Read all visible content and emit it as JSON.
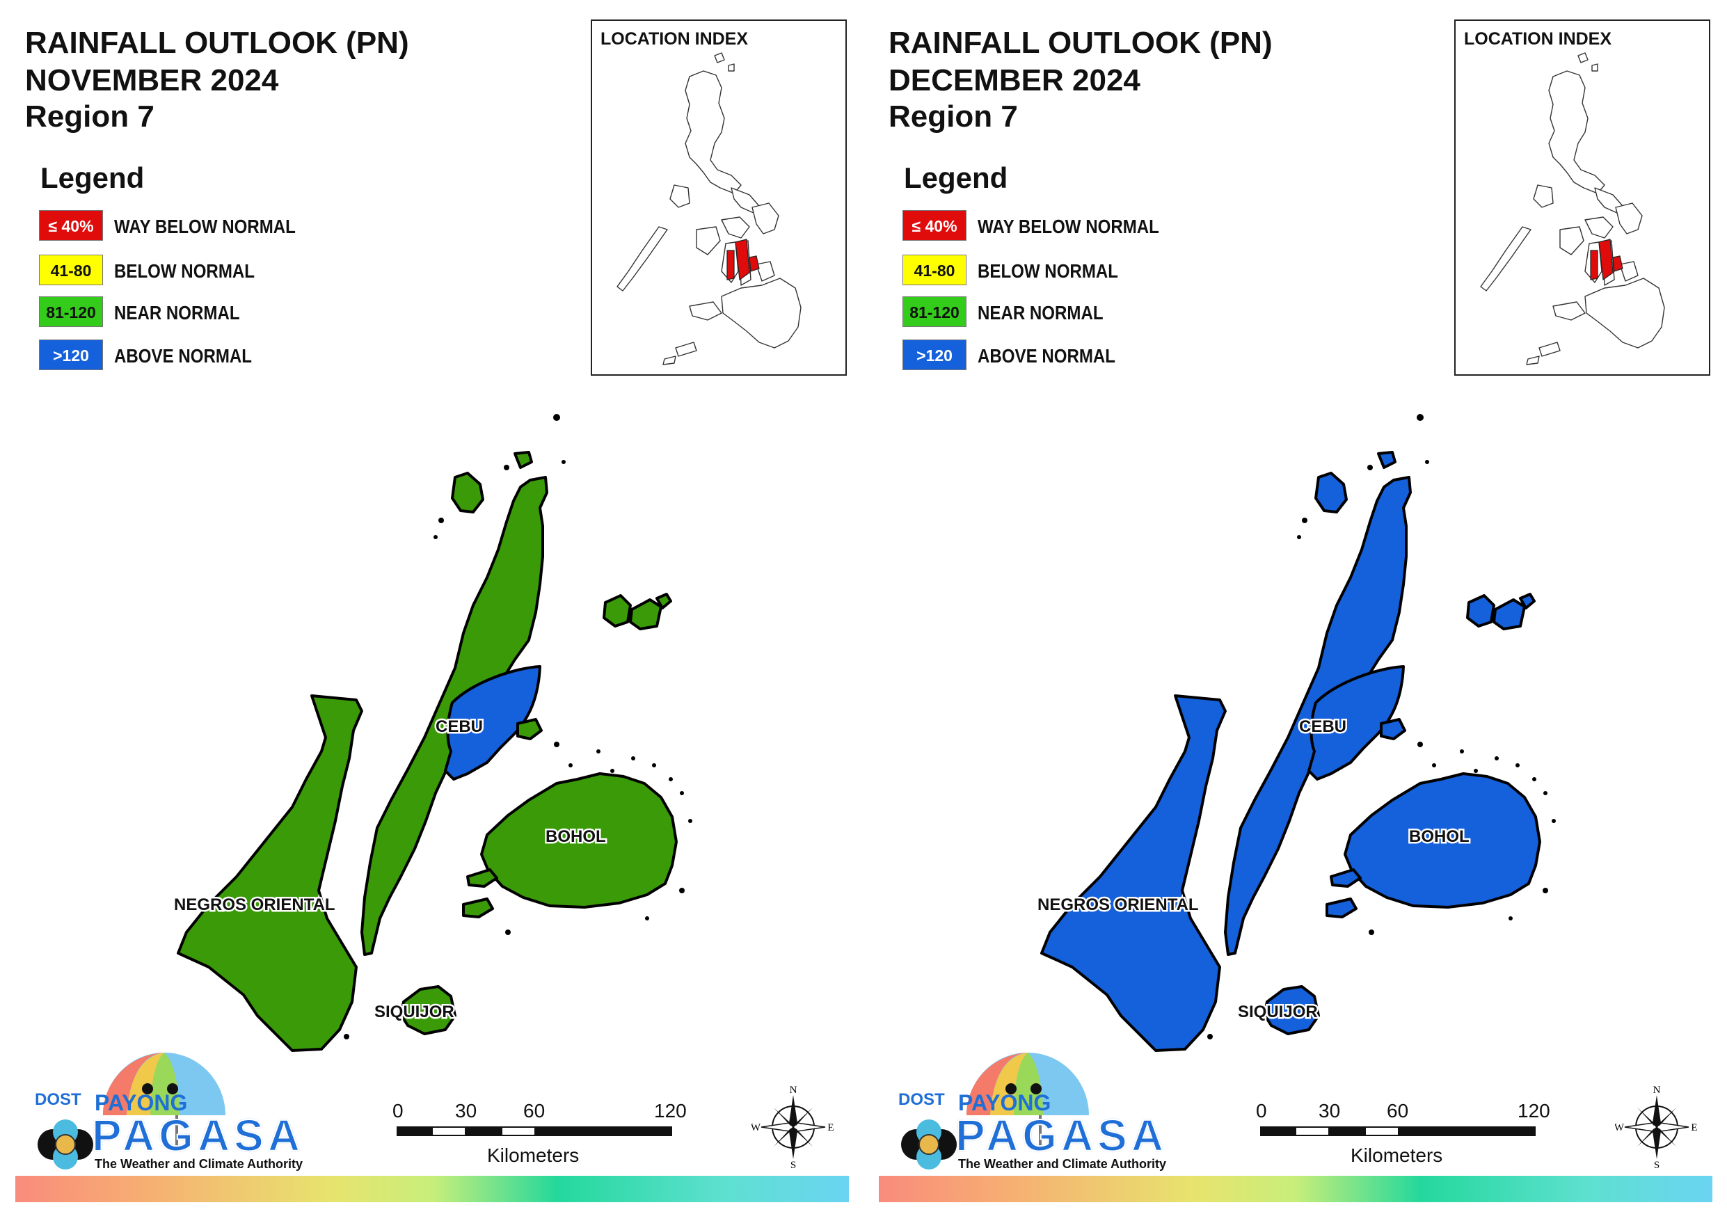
{
  "panels": [
    {
      "title_line1": "RAINFALL OUTLOOK (PN)",
      "title_line2": "NOVEMBER 2024",
      "title_line3": "Region 7",
      "province_fill": {
        "negros": "#3a9a08",
        "cebu": "#3a9a08",
        "bohol": "#3a9a08",
        "siquijor": "#3a9a08",
        "cebu_east_patch": "#1560db"
      }
    },
    {
      "title_line1": "RAINFALL OUTLOOK (PN)",
      "title_line2": "DECEMBER 2024",
      "title_line3": "Region 7",
      "province_fill": {
        "negros": "#1560db",
        "cebu": "#1560db",
        "bohol": "#1560db",
        "siquijor": "#1560db",
        "cebu_east_patch": "#1560db"
      }
    }
  ],
  "legend": {
    "title": "Legend",
    "items": [
      {
        "range": "≤ 40%",
        "label": "WAY BELOW NORMAL",
        "color": "#e00c0c",
        "text_color": "#ffffff"
      },
      {
        "range": "41-80",
        "label": "BELOW NORMAL",
        "color": "#ffff00",
        "text_color": "#111111"
      },
      {
        "range": "81-120",
        "label": "NEAR NORMAL",
        "color": "#33cc1a",
        "text_color": "#111111"
      },
      {
        "range": ">120",
        "label": "ABOVE NORMAL",
        "color": "#1560db",
        "text_color": "#ffffff"
      }
    ]
  },
  "location_index": {
    "title": "LOCATION INDEX",
    "highlight_color": "#e00c0c"
  },
  "provinces": {
    "cebu": "CEBU",
    "bohol": "BOHOL",
    "negros": "NEGROS ORIENTAL",
    "siquijor": "SIQUIJOR"
  },
  "scale_bar": {
    "ticks": [
      "0",
      "30",
      "60",
      "120"
    ],
    "unit": "Kilometers"
  },
  "compass": {
    "n": "N",
    "s": "S",
    "e": "E",
    "w": "W"
  },
  "logo": {
    "dost": "DOST",
    "payong": "PAYONG",
    "pagasa": "PAGASA",
    "tagline": "The Weather and Climate Authority"
  }
}
